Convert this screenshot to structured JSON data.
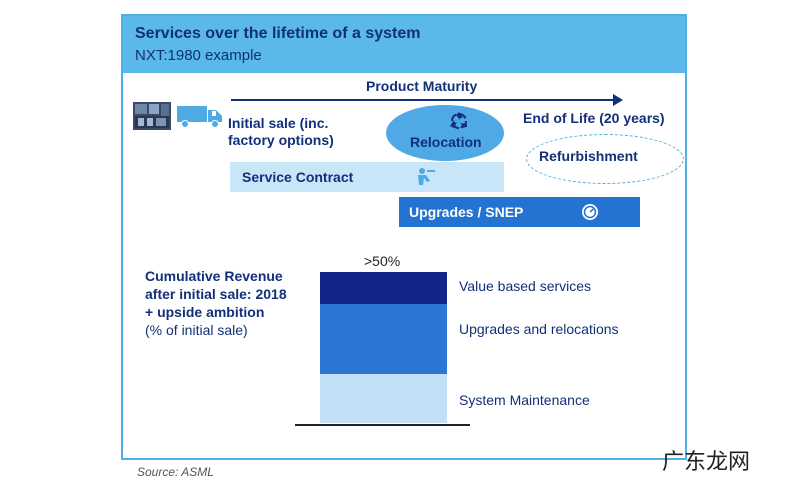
{
  "header": {
    "title": "Services over the lifetime of a system",
    "subtitle": "NXT:1980 example"
  },
  "timeline": {
    "maturity_label": "Product Maturity",
    "initial_sale": "Initial sale (inc. factory options)",
    "relocation": "Relocation",
    "end_of_life": "End of Life (20 years)",
    "refurbishment": "Refurbishment",
    "service_contract": "Service Contract",
    "upgrades": "Upgrades / SNEP"
  },
  "revenue": {
    "description": "Cumulative Revenue after initial sale: 2018 + upside ambition",
    "unit_note": "(% of initial sale)",
    "top_label": ">50%",
    "segments": {
      "value_based": "Value based services",
      "upgrades_relocations": "Upgrades and relocations",
      "maintenance": "System Maintenance"
    }
  },
  "source": "Source: ASML",
  "watermark": "广东龙网",
  "colors": {
    "header_bg": "#5ab8ea",
    "navy": "#12307a",
    "dark_segment": "#12268a",
    "mid_segment": "#2c76d6",
    "light_segment": "#c2e1f7"
  }
}
